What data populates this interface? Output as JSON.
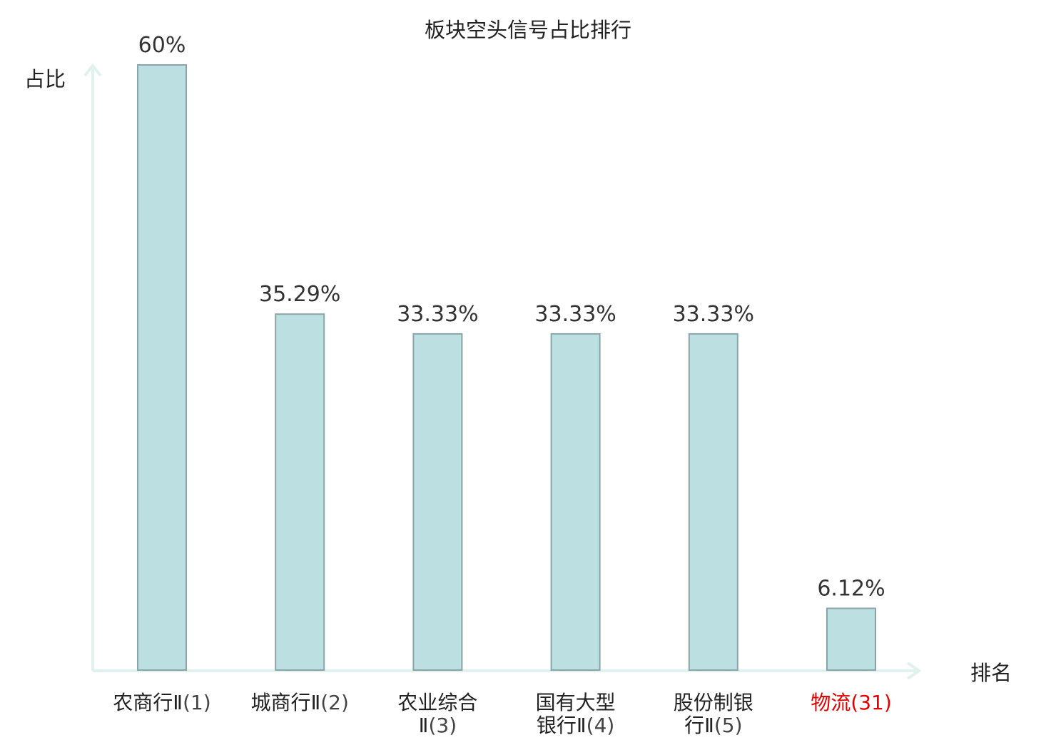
{
  "chart_data": {
    "type": "bar",
    "title": "板块空头信号占比排行",
    "ylabel": "占比",
    "xlabel": "排名",
    "ylim": [
      0,
      60
    ],
    "grid": false,
    "categories": [
      {
        "name_lines": [
          "农商行Ⅱ"
        ],
        "rank": "(1)"
      },
      {
        "name_lines": [
          "城商行Ⅱ"
        ],
        "rank": "(2)"
      },
      {
        "name_lines": [
          "农业综合",
          "Ⅱ"
        ],
        "rank": "(3)"
      },
      {
        "name_lines": [
          "国有大型",
          "银行Ⅱ"
        ],
        "rank": "(4)"
      },
      {
        "name_lines": [
          "股份制银",
          "行Ⅱ"
        ],
        "rank": "(5)"
      },
      {
        "name_lines": [
          "物流"
        ],
        "rank": "(31)"
      }
    ],
    "values": [
      60,
      35.29,
      33.33,
      33.33,
      33.33,
      6.12
    ],
    "data_labels": [
      "60%",
      "35.29%",
      "33.33%",
      "33.33%",
      "33.33%",
      "6.12%"
    ],
    "highlight_index": 5
  },
  "colors": {
    "bar_fill": "#bce0e2",
    "bar_stroke": "#8aa5a9",
    "axis": "#e0f1ee",
    "text": "#222222",
    "value_label": "#333333",
    "highlight": "#e30000"
  }
}
